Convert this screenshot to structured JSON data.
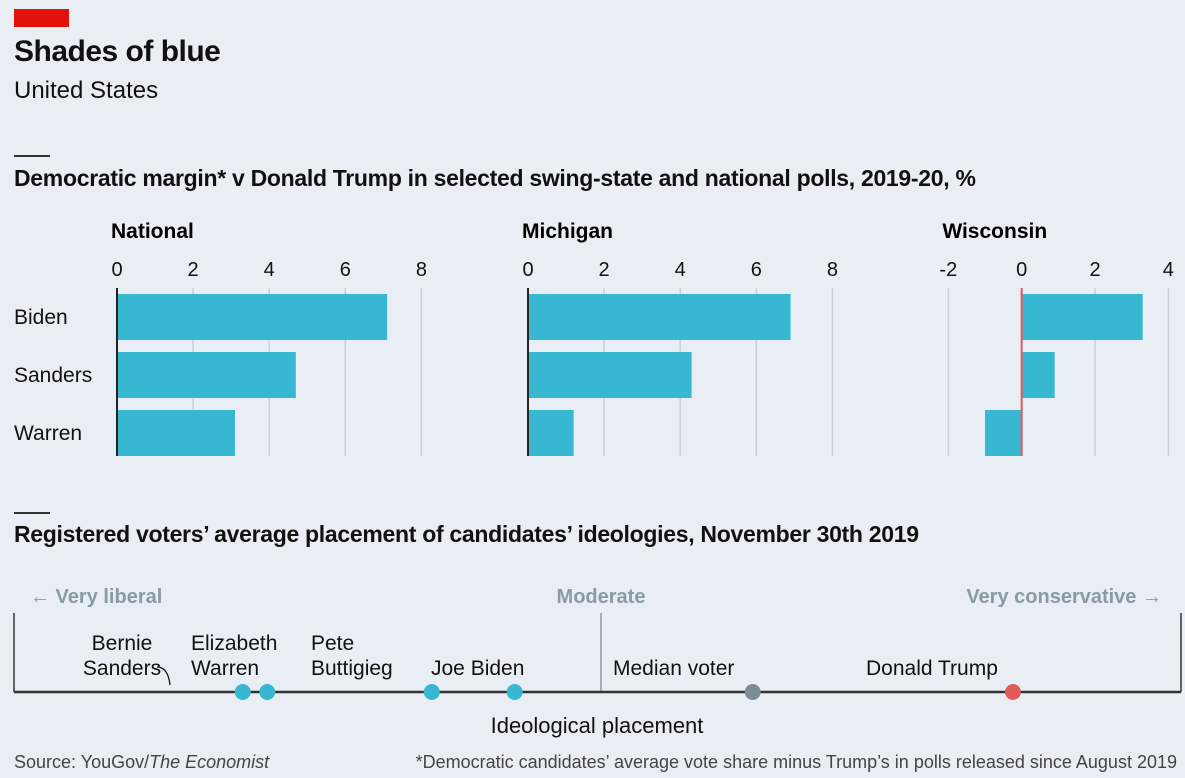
{
  "header": {
    "title": "Shades of blue",
    "subtitle": "United States"
  },
  "section1": {
    "title": "Democratic margin* v Donald Trump in selected swing-state and national polls, 2019-20, %"
  },
  "section2": {
    "title": "Registered voters’ average placement of candidates’ ideologies, November 30th 2019"
  },
  "footer": {
    "source_prefix": "Source: YouGov/",
    "source_italic": "The Economist",
    "footnote": "*Democratic candidates’ average vote share minus Trump’s in polls released since August 2019"
  },
  "colors": {
    "bar": "#38b7d2",
    "trump": "#e05a5a",
    "median": "#7a8c96",
    "accent_red": "#e3120b"
  },
  "chart_data": [
    {
      "type": "bar",
      "orientation": "horizontal",
      "title": "National",
      "categories": [
        "Biden",
        "Sanders",
        "Warren"
      ],
      "values": [
        7.1,
        4.7,
        3.1
      ],
      "ticks": [
        0,
        2,
        4,
        6,
        8
      ],
      "xlim": [
        0,
        8.2
      ],
      "grid": true
    },
    {
      "type": "bar",
      "orientation": "horizontal",
      "title": "Michigan",
      "categories": [
        "Biden",
        "Sanders",
        "Warren"
      ],
      "values": [
        6.9,
        4.3,
        1.2
      ],
      "ticks": [
        0,
        2,
        4,
        6,
        8
      ],
      "xlim": [
        0,
        8.2
      ],
      "grid": true
    },
    {
      "type": "bar",
      "orientation": "horizontal",
      "title": "Wisconsin",
      "categories": [
        "Biden",
        "Sanders",
        "Warren"
      ],
      "values": [
        3.3,
        0.9,
        -1.0
      ],
      "ticks": [
        -2,
        0,
        2,
        4
      ],
      "xlim": [
        -2.2,
        4.1
      ],
      "grid": true
    },
    {
      "type": "scatter",
      "title": "Registered voters’ average placement of candidates’ ideologies, November 30th 2019",
      "xlabel": "Ideological placement",
      "scale_labels": {
        "left": "← Very liberal",
        "center": "Moderate",
        "right": "Very conservative →"
      },
      "xlim": [
        0,
        100
      ],
      "points": [
        {
          "name": "Bernie Sanders",
          "label_lines": [
            "Bernie",
            "Sanders"
          ],
          "x": 19.6,
          "color": "#38b7d2"
        },
        {
          "name": "Elizabeth Warren",
          "label_lines": [
            "Elizabeth",
            "Warren"
          ],
          "x": 21.7,
          "color": "#38b7d2"
        },
        {
          "name": "Pete Buttigieg",
          "label_lines": [
            "Pete",
            "Buttigieg"
          ],
          "x": 35.8,
          "color": "#38b7d2"
        },
        {
          "name": "Joe Biden",
          "label_lines": [
            "Joe Biden"
          ],
          "x": 42.9,
          "color": "#38b7d2"
        },
        {
          "name": "Median voter",
          "label_lines": [
            "Median voter"
          ],
          "x": 63.3,
          "color": "#7a8c96"
        },
        {
          "name": "Donald Trump",
          "label_lines": [
            "Donald Trump"
          ],
          "x": 85.6,
          "color": "#e05a5a"
        }
      ]
    }
  ]
}
